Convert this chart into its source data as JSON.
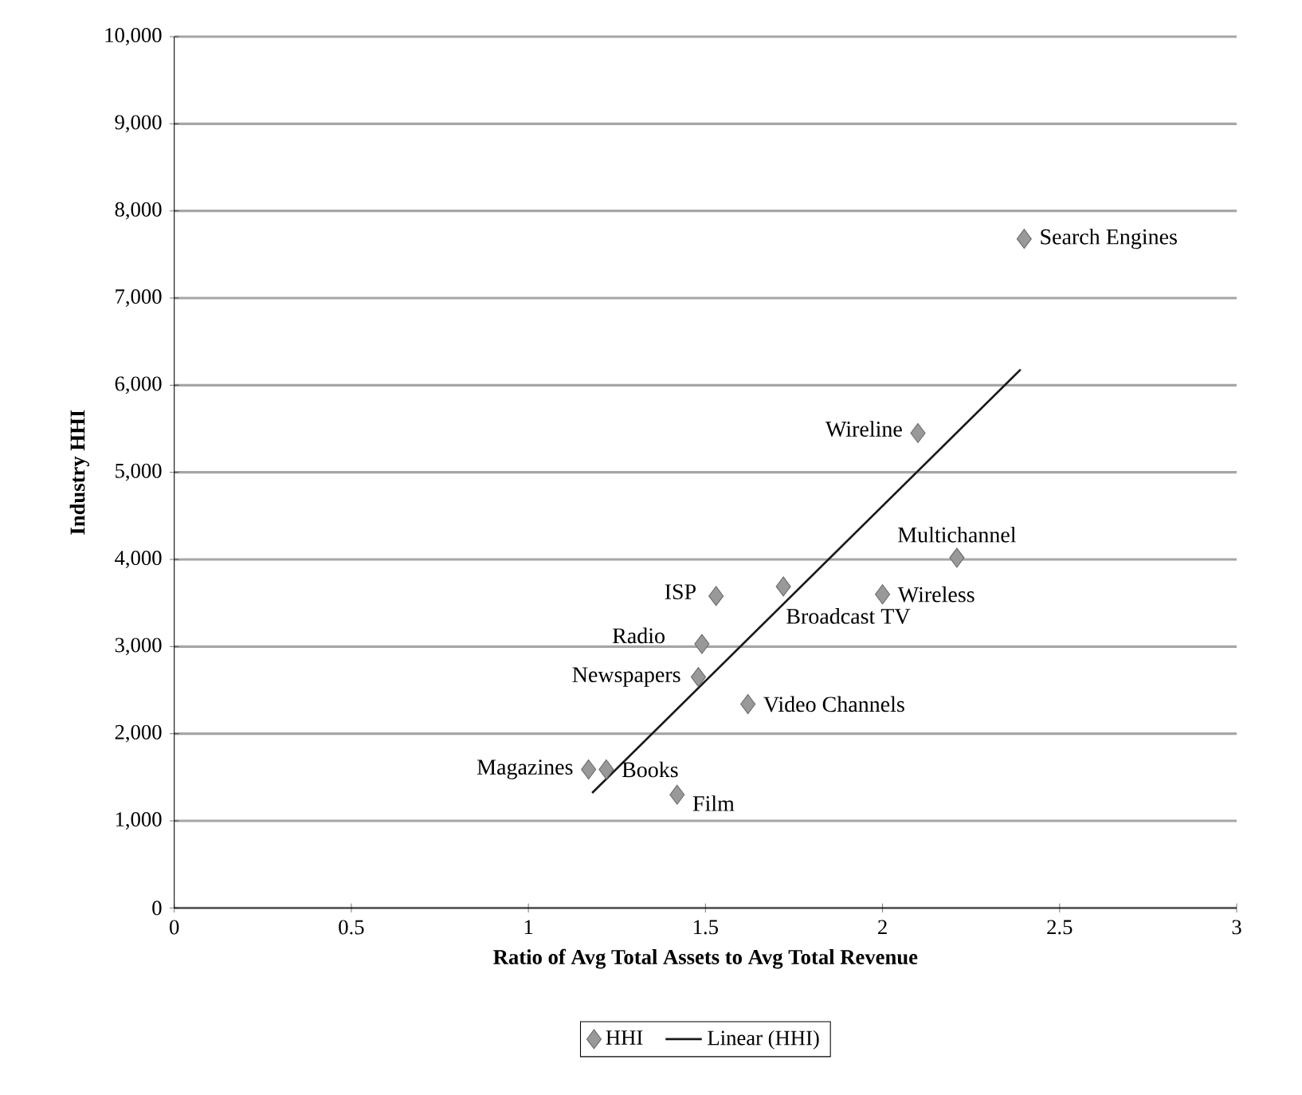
{
  "chart_data": {
    "type": "scatter",
    "xlabel": "Ratio of Avg Total Assets to Avg Total Revenue",
    "ylabel": "Industry HHI",
    "xlim": [
      0,
      3
    ],
    "xticks": [
      0,
      0.5,
      1,
      1.5,
      2,
      2.5,
      3
    ],
    "ylim": [
      0,
      10000
    ],
    "yticks": [
      0,
      {
        "value": 1000,
        "label": "1,000"
      },
      {
        "value": 2000,
        "label": "2,000"
      },
      {
        "value": 3000,
        "label": "3,000"
      },
      {
        "value": 4000,
        "label": "4,000"
      },
      {
        "value": 5000,
        "label": "5,000"
      },
      {
        "value": 6000,
        "label": "6,000"
      },
      {
        "value": 7000,
        "label": "7,000"
      },
      {
        "value": 8000,
        "label": "8,000"
      },
      {
        "value": 9000,
        "label": "9,000"
      },
      {
        "value": 10000,
        "label": "10,000"
      }
    ],
    "grid": "y",
    "legend": "bottom",
    "series": [
      {
        "name": "HHI",
        "marker": "diamond",
        "color": "#999999",
        "x": [
          2.4,
          2.1,
          2.21,
          2.0,
          1.72,
          1.53,
          1.49,
          1.48,
          1.62,
          1.17,
          1.22,
          1.42
        ],
        "values": [
          7680,
          5450,
          4020,
          3600,
          3690,
          3580,
          3030,
          2650,
          2340,
          1590,
          1590,
          1300
        ]
      },
      {
        "name": "Linear (HHI)",
        "type": "line",
        "marker": "none",
        "line_style": "solid",
        "color": "#1a1a1a",
        "x": [
          1.18,
          2.39
        ],
        "values": [
          1320,
          6180
        ]
      }
    ],
    "annotations": [
      {
        "text": "Search Engines",
        "x": 2.4,
        "y": 7680
      },
      {
        "text": "Wireline",
        "x": 2.1,
        "y": 5450
      },
      {
        "text": "Multichannel",
        "x": 2.21,
        "y": 4020
      },
      {
        "text": "Wireless",
        "x": 2.0,
        "y": 3600
      },
      {
        "text": "Broadcast TV",
        "x": 1.72,
        "y": 3690
      },
      {
        "text": "ISP",
        "x": 1.53,
        "y": 3580
      },
      {
        "text": "Radio",
        "x": 1.49,
        "y": 3030
      },
      {
        "text": "Newspapers",
        "x": 1.48,
        "y": 2650
      },
      {
        "text": "Video Channels",
        "x": 1.62,
        "y": 2340
      },
      {
        "text": "Magazines",
        "x": 1.17,
        "y": 1590
      },
      {
        "text": "Books",
        "x": 1.22,
        "y": 1590
      },
      {
        "text": "Film",
        "x": 1.42,
        "y": 1300
      }
    ]
  }
}
